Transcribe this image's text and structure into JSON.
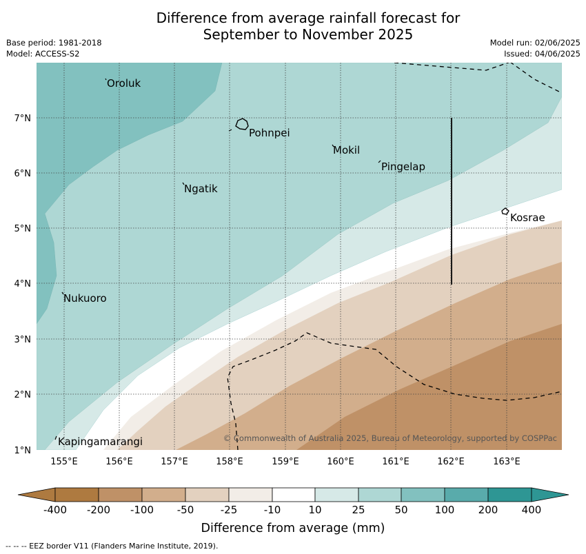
{
  "title_line1": "Difference from average rainfall forecast for",
  "title_line2": "September to November 2025",
  "meta": {
    "base_period": "Base period: 1981-2018",
    "model": "Model: ACCESS-S2",
    "model_run": "Model run: 02/06/2025",
    "issued": "Issued: 04/06/2025"
  },
  "map": {
    "lat_labels": [
      "7°N",
      "6°N",
      "5°N",
      "4°N",
      "3°N",
      "2°N",
      "1°N"
    ],
    "lon_labels": [
      "155°E",
      "156°E",
      "157°E",
      "158°E",
      "159°E",
      "160°E",
      "161°E",
      "162°E",
      "163°E"
    ],
    "places": {
      "oroluk": "Oroluk",
      "pohnpei": "Pohnpei",
      "mokil": "Mokil",
      "pingelap": "Pingelap",
      "ngatik": "Ngatik",
      "kosrae": "Kosrae",
      "nukuoro": "Nukuoro",
      "kapingamarangi": "Kapingamarangi"
    },
    "copyright": "© Commonwealth of Australia 2025, Bureau of Meteorology, supported by COSPPac"
  },
  "colorbar": {
    "tick_labels": [
      "-400",
      "-200",
      "-100",
      "-50",
      "-25",
      "-10",
      "10",
      "25",
      "50",
      "100",
      "200",
      "400"
    ],
    "colors": [
      "#ae7a40",
      "#bf9167",
      "#d2ae8c",
      "#e3d1bf",
      "#f2ede7",
      "#ffffff",
      "#d6e9e7",
      "#aed7d4",
      "#82c1bf",
      "#59abab",
      "#2e9694"
    ],
    "label": "Difference from average (mm)"
  },
  "footer": "--  --  -- EEZ border V11 (Flanders Marine Institute, 2019)."
}
